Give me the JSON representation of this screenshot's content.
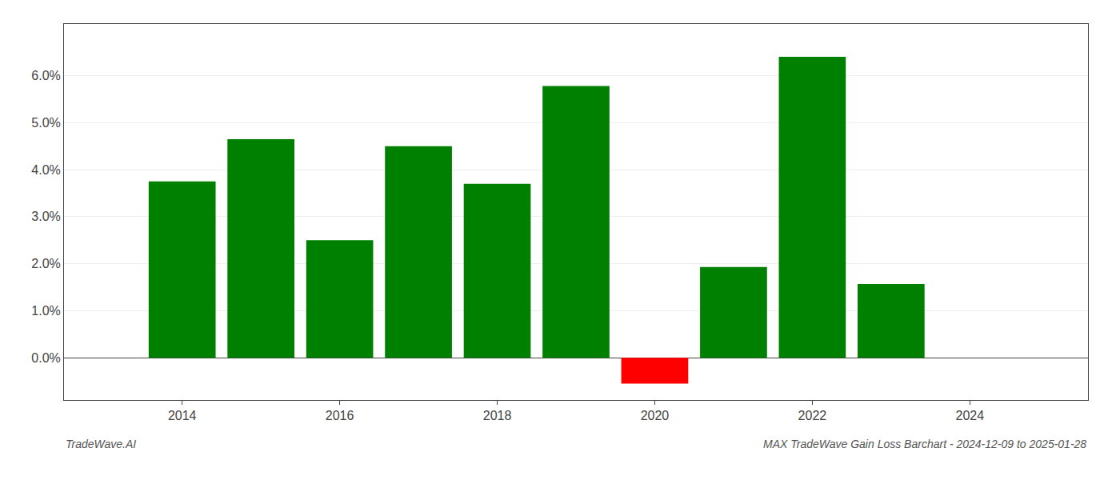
{
  "chart_data": {
    "type": "bar",
    "title": "MAX TradeWave Gain Loss Barchart - 2024-12-09 to 2025-01-28",
    "annotations": [
      "TradeWave.AI"
    ],
    "x": [
      2014,
      2015,
      2016,
      2017,
      2018,
      2019,
      2020,
      2021,
      2022,
      2023
    ],
    "values": [
      0.0375,
      0.0465,
      0.025,
      0.045,
      0.037,
      0.0578,
      -0.0055,
      0.0193,
      0.064,
      0.0157
    ],
    "colors": [
      "#008000",
      "#008000",
      "#008000",
      "#008000",
      "#008000",
      "#008000",
      "#ff0000",
      "#008000",
      "#008000",
      "#008000"
    ],
    "xlim": [
      2012.5,
      2025.5
    ],
    "xticks": [
      2014,
      2016,
      2018,
      2020,
      2022,
      2024
    ],
    "ylim": [
      -0.009,
      0.071
    ],
    "yticks": [
      {
        "value": 0.0,
        "label": "0.0%"
      },
      {
        "value": 0.01,
        "label": "1.0%"
      },
      {
        "value": 0.02,
        "label": "2.0%"
      },
      {
        "value": 0.03,
        "label": "3.0%"
      },
      {
        "value": 0.04,
        "label": "4.0%"
      },
      {
        "value": 0.05,
        "label": "5.0%"
      },
      {
        "value": 0.06,
        "label": "6.0%"
      }
    ],
    "grid": true
  }
}
